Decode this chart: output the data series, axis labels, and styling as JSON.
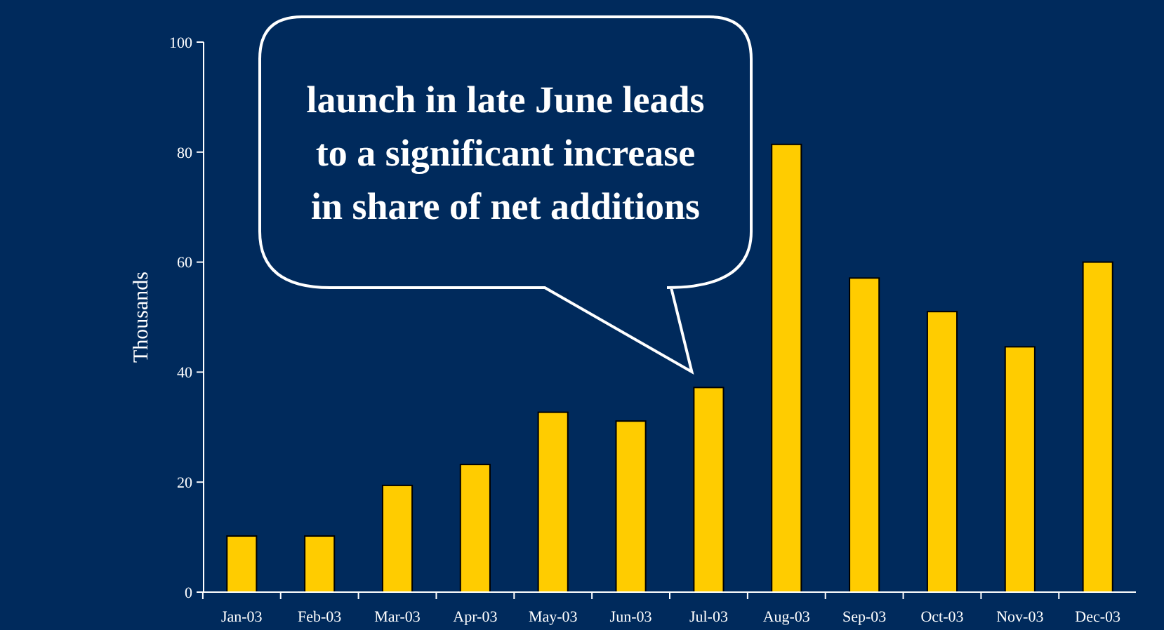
{
  "chart_data": {
    "type": "bar",
    "ylabel": "Thousands",
    "categories": [
      "Jan-03",
      "Feb-03",
      "Mar-03",
      "Apr-03",
      "May-03",
      "Jun-03",
      "Jul-03",
      "Aug-03",
      "Sep-03",
      "Oct-03",
      "Nov-03",
      "Dec-03"
    ],
    "values": [
      10.2,
      10.2,
      19.4,
      23.2,
      32.7,
      31.1,
      37.2,
      81.4,
      57.1,
      51,
      44.6,
      60
    ],
    "color": "#ffcc00",
    "ylim": [
      0,
      100
    ],
    "yticks": [
      0,
      20,
      40,
      60,
      80,
      100
    ],
    "annotations": [
      "launch in late June leads to a significant increase in share of net additions"
    ]
  }
}
